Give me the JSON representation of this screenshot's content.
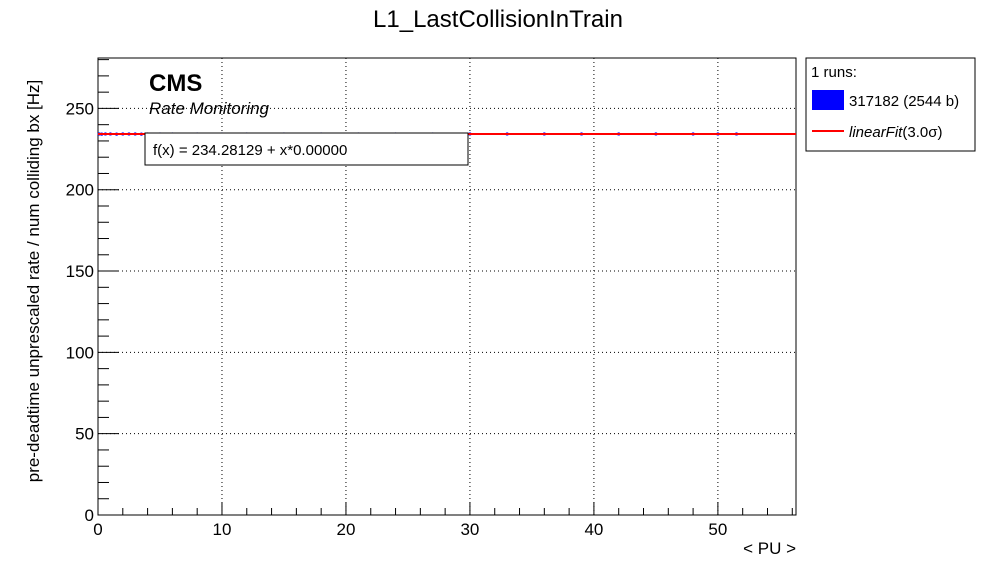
{
  "chart_data": {
    "type": "line",
    "title": "L1_LastCollisionInTrain",
    "xlabel": "< PU >",
    "ylabel": "pre-deadtime unprescaled rate / num colliding bx [Hz]",
    "xlim": [
      0,
      56.3
    ],
    "ylim": [
      0,
      281
    ],
    "xticks": [
      0,
      10,
      20,
      30,
      40,
      50
    ],
    "yticks": [
      0,
      50,
      100,
      150,
      200,
      250
    ],
    "grid": true,
    "annotations": {
      "experiment": "CMS",
      "subtitle": "Rate Monitoring",
      "fit_formula": "f(x) = 234.28129 + x*0.00000"
    },
    "legend": {
      "position": "right-outside",
      "header": "1 runs:",
      "entries": [
        {
          "label": "317182 (2544 b)",
          "color": "#0000ff",
          "kind": "box"
        },
        {
          "label": "linearFit",
          "suffix": "(3.0σ)",
          "color": "#ff0000",
          "kind": "line"
        }
      ]
    },
    "series": [
      {
        "name": "317182 (2544 b)",
        "color": "#0000ff",
        "kind": "points",
        "x": [
          0.1,
          0.3,
          0.6,
          1.0,
          1.5,
          2.0,
          2.5,
          3.0,
          3.5,
          4.0,
          5.0,
          6.0,
          8.0,
          10.0,
          12.0,
          15.0,
          18.0,
          21.0,
          24.0,
          27.0,
          30.0,
          33.0,
          36.0,
          39.0,
          42.0,
          45.0,
          48.0,
          50.0,
          51.5
        ],
        "y": [
          234.3,
          234.2,
          234.3,
          234.3,
          234.2,
          234.3,
          234.3,
          234.3,
          234.2,
          234.3,
          234.3,
          234.3,
          234.3,
          234.3,
          234.3,
          234.3,
          234.3,
          234.3,
          234.3,
          234.3,
          234.3,
          234.3,
          234.3,
          234.3,
          234.3,
          234.3,
          234.3,
          234.3,
          234.3
        ]
      },
      {
        "name": "linearFit",
        "color": "#ff0000",
        "kind": "line",
        "intercept": 234.28129,
        "slope": 0.0,
        "x_range": [
          0,
          56.3
        ]
      }
    ]
  }
}
